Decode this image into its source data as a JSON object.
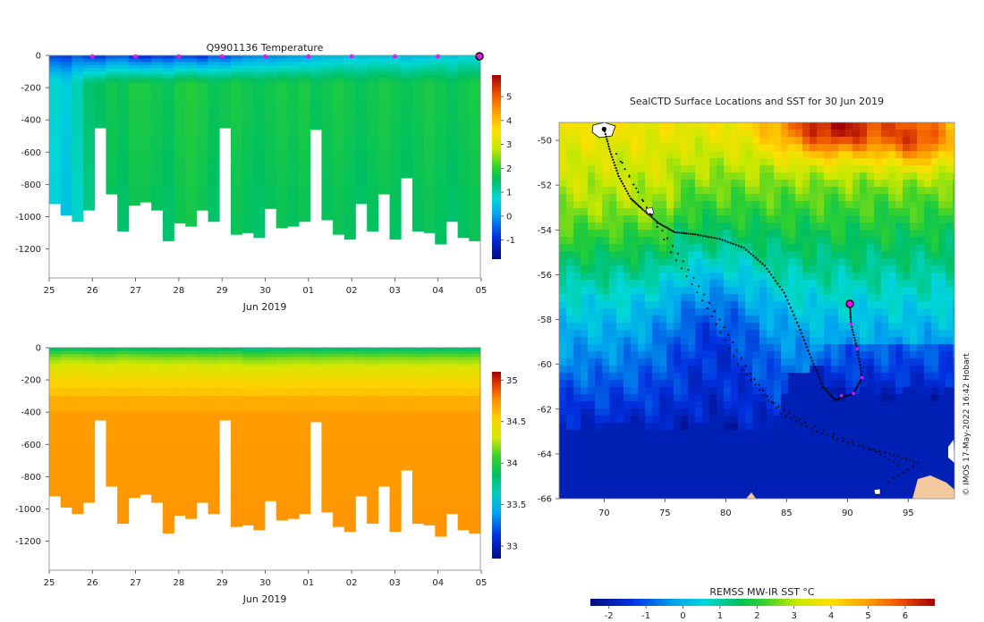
{
  "chart_data": [
    {
      "type": "heatmap",
      "title": "Q9901136  Temperature",
      "ylabel": "",
      "xlabel": "Jun 2019",
      "x_ticks": [
        "25",
        "26",
        "27",
        "28",
        "29",
        "30",
        "01",
        "02",
        "03",
        "04",
        "05"
      ],
      "y_ticks": [
        "0",
        "-200",
        "-400",
        "-600",
        "-800",
        "-1000",
        "-1200"
      ],
      "ylim": [
        -1380,
        0
      ],
      "x_range_days": [
        0,
        10.05
      ],
      "colorbar": {
        "ticks": [
          "5",
          "4",
          "3",
          "2",
          "1",
          "0",
          "-1"
        ],
        "range": [
          -1.8,
          5.9
        ]
      },
      "surface_marker_days": [
        1,
        2,
        3,
        4,
        5,
        6,
        7,
        8,
        9,
        10
      ],
      "profile_max_depth_m": [
        920,
        990,
        1030,
        960,
        450,
        860,
        1090,
        930,
        910,
        960,
        1150,
        1040,
        1060,
        960,
        1030,
        450,
        1110,
        1100,
        1130,
        950,
        1070,
        1060,
        1030,
        460,
        1020,
        1110,
        1140,
        920,
        1090,
        860,
        1140,
        760,
        1090,
        1100,
        1170,
        1030,
        1130,
        1150
      ],
      "profile_surface_temp_c": [
        -0.8,
        -0.9,
        -0.6,
        -0.9,
        -1.0,
        -0.7,
        -0.6,
        -1.1,
        -1.2,
        -0.9,
        -1.0,
        -0.8,
        -0.9,
        -1.1,
        -0.6,
        -0.8,
        -0.5,
        -0.3,
        -0.2,
        -0.3,
        -0.2,
        -0.1,
        -0.1,
        0.1,
        0.2,
        0.2,
        0.3,
        0.3,
        0.4,
        0.3,
        0.4,
        0.2,
        0.3,
        0.3,
        0.5,
        0.4,
        0.6,
        0.5
      ],
      "profile_deep_temp_c": [
        0.8,
        0.6,
        1.0,
        1.4,
        1.5,
        1.7,
        1.6,
        1.8,
        1.8,
        1.7,
        1.6,
        1.8,
        1.9,
        1.8,
        1.6,
        1.7,
        1.8,
        1.7,
        1.6,
        1.7,
        1.8,
        1.7,
        1.8,
        1.6,
        1.7,
        1.8,
        1.7,
        1.6,
        1.7,
        1.8,
        1.7,
        1.6,
        1.7,
        1.8,
        1.7,
        1.6,
        1.7,
        1.8
      ]
    },
    {
      "type": "heatmap",
      "title": "",
      "ylabel": "",
      "xlabel": "Jun 2019",
      "x_ticks": [
        "25",
        "26",
        "27",
        "28",
        "29",
        "30",
        "01",
        "02",
        "03",
        "04",
        "05"
      ],
      "y_ticks": [
        "0",
        "-200",
        "-400",
        "-600",
        "-800",
        "-1000",
        "-1200"
      ],
      "ylim": [
        -1380,
        0
      ],
      "colorbar": {
        "ticks": [
          "35",
          "34.5",
          "34",
          "33.5",
          "33"
        ],
        "range": [
          32.85,
          35.1
        ]
      },
      "profile_surface_salinity": [
        33.85,
        33.9,
        33.9,
        33.88,
        33.85,
        33.86,
        33.9,
        33.88,
        33.87,
        33.86,
        33.85,
        33.86,
        33.87,
        33.85,
        33.84,
        33.86,
        33.85,
        33.8,
        33.8,
        33.82,
        33.83,
        33.84,
        33.85,
        33.83,
        33.84,
        33.85,
        33.86,
        33.84,
        33.83,
        33.84,
        33.85,
        33.84,
        33.83,
        33.84,
        33.85,
        33.84,
        33.83,
        33.84
      ],
      "profile_deep_salinity": [
        34.72,
        34.72,
        34.72,
        34.72,
        34.72,
        34.72,
        34.72,
        34.72,
        34.72,
        34.72,
        34.72,
        34.72,
        34.72,
        34.72,
        34.72,
        34.72,
        34.72,
        34.72,
        34.72,
        34.72,
        34.72,
        34.72,
        34.72,
        34.72,
        34.72,
        34.72,
        34.72,
        34.72,
        34.72,
        34.72,
        34.72,
        34.72,
        34.72,
        34.72,
        34.72,
        34.72,
        34.72,
        34.72
      ]
    },
    {
      "type": "heatmap",
      "title": "SealCTD Surface Locations and SST for 30 Jun 2019",
      "x_ticks": [
        "70",
        "75",
        "80",
        "85",
        "90",
        "95"
      ],
      "y_ticks": [
        "-50",
        "-52",
        "-54",
        "-56",
        "-58",
        "-60",
        "-62",
        "-64",
        "-66"
      ],
      "xlim": [
        66.3,
        98.8
      ],
      "ylim": [
        -66,
        -49.2
      ],
      "colorbar_label": "REMSS MW-IR SST °C",
      "colorbar": {
        "ticks": [
          "-2",
          "-1",
          "0",
          "1",
          "2",
          "3",
          "4",
          "5",
          "6"
        ],
        "range": [
          -2.5,
          6.8
        ]
      },
      "current_location": [
        90.2,
        -57.3
      ],
      "deploy_location": [
        70.0,
        -49.5
      ],
      "track": [
        [
          70.0,
          -49.5
        ],
        [
          70.5,
          -50.5
        ],
        [
          71.2,
          -51.6
        ],
        [
          72.2,
          -52.6
        ],
        [
          73.2,
          -53.1
        ],
        [
          74.5,
          -53.7
        ],
        [
          75.8,
          -54.1
        ],
        [
          77.5,
          -54.2
        ],
        [
          79.5,
          -54.4
        ],
        [
          81.5,
          -54.8
        ],
        [
          83.2,
          -55.6
        ],
        [
          84.8,
          -56.8
        ],
        [
          86.0,
          -58.3
        ],
        [
          87.0,
          -59.7
        ],
        [
          88.0,
          -61.0
        ],
        [
          89.0,
          -61.6
        ],
        [
          90.5,
          -61.3
        ],
        [
          91.2,
          -60.6
        ],
        [
          90.8,
          -59.3
        ],
        [
          90.3,
          -58.2
        ],
        [
          90.2,
          -57.3
        ]
      ],
      "recent_track": [
        [
          90.2,
          -57.3
        ],
        [
          90.3,
          -58.2
        ],
        [
          90.8,
          -59.3
        ],
        [
          91.2,
          -60.6
        ],
        [
          90.5,
          -61.3
        ],
        [
          89.5,
          -61.4
        ]
      ]
    }
  ],
  "watermark": "© IMOS 17-May-2022 16:42 Hobart"
}
